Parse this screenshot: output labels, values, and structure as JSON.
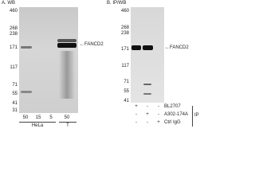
{
  "panel_a": {
    "title": "A. WB",
    "markers": [
      "460",
      "268",
      "238",
      "171",
      "117",
      "71",
      "55",
      "41",
      "31"
    ],
    "target": "FANCD2",
    "lanes": [
      "50",
      "15",
      "5",
      "50"
    ],
    "groups": [
      "HeLa",
      "T"
    ]
  },
  "panel_b": {
    "title": "B. IP/WB",
    "markers": [
      "460",
      "268",
      "238",
      "171",
      "117",
      "71",
      "55",
      "41"
    ],
    "target": "FANCD2",
    "rows": [
      {
        "label": "BL2707",
        "marks": [
          "+",
          "-",
          "-"
        ]
      },
      {
        "label": "A302-174A",
        "marks": [
          "-",
          "+",
          "-"
        ]
      },
      {
        "label": "Ctrl IgG",
        "marks": [
          "-",
          "-",
          "+"
        ]
      }
    ],
    "side_label": "IP"
  }
}
